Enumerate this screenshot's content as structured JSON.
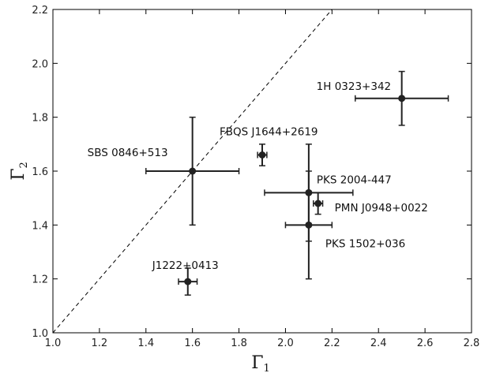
{
  "chart_data": {
    "type": "scatter",
    "title": "",
    "xlabel": "Γ",
    "xlabel_sub": "1",
    "ylabel": "Γ",
    "ylabel_sub": "2",
    "xlim": [
      1.0,
      2.8
    ],
    "ylim": [
      1.0,
      2.2
    ],
    "xticks": [
      "1.0",
      "1.2",
      "1.4",
      "1.6",
      "1.8",
      "2.0",
      "2.2",
      "2.4",
      "2.6",
      "2.8"
    ],
    "yticks": [
      "1.0",
      "1.2",
      "1.4",
      "1.6",
      "1.8",
      "2.0",
      "2.2"
    ],
    "grid": false,
    "reference_line": {
      "style": "dashed",
      "relation": "y = x"
    },
    "marker_color": "#222222",
    "points": [
      {
        "label": "1H 0323+342",
        "x": 2.5,
        "y": 1.87,
        "xerr": 0.2,
        "yerr": 0.1
      },
      {
        "label": "FBQS J1644+2619",
        "x": 1.9,
        "y": 1.66,
        "xerr": 0.02,
        "yerr": 0.04
      },
      {
        "label": "SBS 0846+513",
        "x": 1.6,
        "y": 1.6,
        "xerr": 0.2,
        "yerr": 0.2
      },
      {
        "label": "PKS 2004-447",
        "x": 2.1,
        "y": 1.52,
        "xerr": 0.19,
        "yerr": 0.18
      },
      {
        "label": "PMN J0948+0022",
        "x": 2.14,
        "y": 1.48,
        "xerr": 0.02,
        "yerr": 0.04
      },
      {
        "label": "PKS 1502+036",
        "x": 2.1,
        "y": 1.4,
        "xerr": 0.1,
        "yerr": 0.2
      },
      {
        "label": "J1222+0413",
        "x": 1.58,
        "y": 1.19,
        "xerr": 0.04,
        "yerr": 0.05
      }
    ]
  }
}
